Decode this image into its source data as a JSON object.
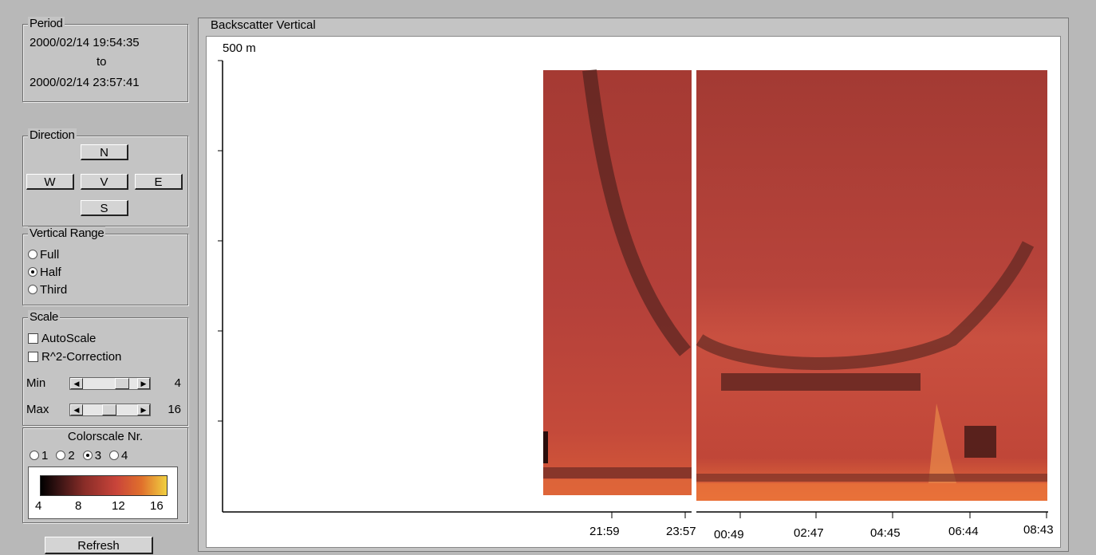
{
  "period": {
    "legend": "Period",
    "start": "2000/02/14 19:54:35",
    "to": "to",
    "end": "2000/02/14 23:57:41"
  },
  "direction": {
    "legend": "Direction",
    "n": "N",
    "w": "W",
    "v": "V",
    "e": "E",
    "s": "S"
  },
  "vertical_range": {
    "legend": "Vertical Range",
    "options": [
      "Full",
      "Half",
      "Third"
    ],
    "selected": "Half"
  },
  "scale": {
    "legend": "Scale",
    "autoscale": "AutoScale",
    "r2": "R^2-Correction",
    "min_label": "Min",
    "min_value": "4",
    "max_label": "Max",
    "max_value": "16"
  },
  "colorscale": {
    "legend": "Colorscale Nr.",
    "options": [
      "1",
      "2",
      "3",
      "4"
    ],
    "selected": "3",
    "ticks": [
      "4",
      "8",
      "12",
      "16"
    ]
  },
  "refresh_label": "Refresh",
  "plot": {
    "title": "Backscatter Vertical",
    "height_label": "500 m",
    "x_ticks_left": [
      "21:59",
      "23:57"
    ],
    "x_ticks_right": [
      "00:49",
      "02:47",
      "04:45",
      "06:44",
      "08:43"
    ]
  },
  "colors": {
    "panel": "#c4c4c4",
    "heat_base": "#b5413a",
    "heat_dark": "#3a1a18",
    "heat_bright": "#f0a020"
  }
}
